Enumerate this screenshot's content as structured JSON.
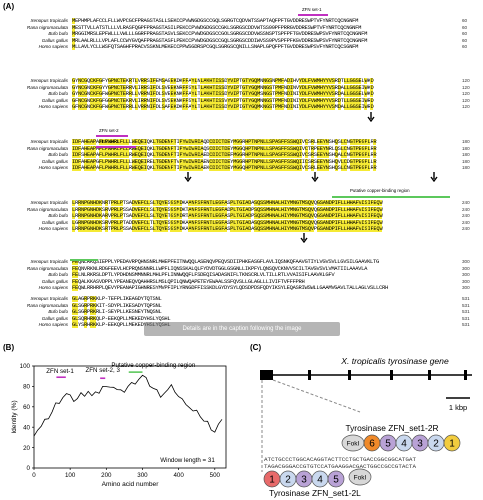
{
  "panel_a": {
    "label": "(A)",
    "species": [
      "Xenopus tropicalis",
      "Rana nigromaculata",
      "Bufo bufo",
      "Gallus gallus",
      "Homo sapiens"
    ],
    "blocks": [
      {
        "ends": [
          "60",
          "60",
          "60",
          "60",
          "60"
        ],
        "rows": [
          "MEPHMPLAFCCLFLLWVPCGCFPRAGSTASLLSEKCCPVWNGDGSCCGQLSGRGTCQDVWTSSAPTAQFPFTGVDDRESWPTVFYNRTCQCNGNFM",
          "MESTTVLLATSTLLLVLRASFQGPFPRAGSTASILPEKCCPVWDGDGSCCGKLSGRGSCDDVWTSS99PFPRRGVDDRESWPTVFYNRTCQCNGNFM",
          "MRGGIMRSLEPFWLLLVWLLLGGRFPRAGSTASVLSEKCCPVWDGDGSCCGOLSGRGSCDDVWSSNSPTSPFPFTGVDDRESWPSVFYNRTCQCNGNFM",
          "MRLAALRLLLVPLAFLCCWYGVQAFPRAGSTASFLPEKCCPVWDGDGSCCGQLSGRGSCDDIWVSS9PVSPFPFKGVDDRESWPSVFYNRTCQCNGNFM",
          "MLLAVLYCLLWSFQTSAGHFPRACVSSKNLMEKECCPPWSGDRSPCGQLSGRGSCQNILLSNAPLGPQFPFTGVDDRESWPSVFYNRTCQCSGNFM"
        ]
      },
      {
        "ends": [
          "120",
          "120",
          "120",
          "120",
          "120"
        ],
        "rows": [
          "GYNCGQCKFGFYGPNCTEKRTLVRRSIFEMSAGEKDKFFAYLNLAKHTISSDYVIPTGTYGQMNNGSNPMFADIHVYDLFVWMHYYVSRDTLLGGSELWKD",
          "GYNCGNCKFGYYGPNCTERRVLIRRSIFDLSVEEKNRFFSYLTLAKHTISSDYVIPTGTYGQMNNGSTPMFNDINVYDLFVWMHYYVSRDALLGGSEIWKD",
          "GYNCGNCKFGFWGPNCTERRLLVRRNIFDLSVEEKNKFFAYLTLAKHTISSDYVIPTGTYGQMSNGSTPMFNDINIYDLFVWMHYYVSRDALLGGSELWKD",
          "GFNCGNCKFGFGGPNCTEKRVLIRRNIFDLSVSEKNKFFSYLTLAKHTISSVYVIPTGTYGQMNNGSTPMFNDINIYDLFVWMHYYVSRDTLLGGSEIWRD",
          "GFNCGNCKFGFWGPNCTERRLLVRRNIFDLSAPEKDKFFAYLTLAKHTISSDYVIPIGTYGQMKNGSTPMFNDINIYDLFVWMHYYVSMDALLGGSEIWRD"
        ]
      },
      {
        "ends": [
          "180",
          "180",
          "180",
          "180",
          "180"
        ],
        "rows": [
          "IDFAHEAPAFLPWHRLFLLLWEQEIQKLTGDENFTIPYWDWRDAQDCDICTDEYMGGRHPTNPNLLSPASFFSSWQIVCSRLEEYNSHQSLCNGTPEGPLRR",
          "IDFAHEAPAFLPWHRLFLLRWEQEIQKLTGDENFTIPYWDWRDAQSCDICTDEYMGGQHPTNPNLLSPASFFSSWQIVCTRPEEYNRLQSLCNGTPEGPLRR",
          "IDFSHEAPAFLPWHRLFLLRWEQEIQKLTGDENFTIPYWDWRDAEDCDICTDEFMGGRHPTNPNLLSPASFFSSWQIVCSRSEEYNSHQALCNGTPEGPLRR",
          "IDFAHEAPGFLPWHRLFLLLWEQEIRELTGDENFTVPYWDWRDAENCDICTDEYMGGRHPTNPNLLSPASFFSSWQIICSRSEEYNSHQVLCDGTPEGPLLR",
          "IDFAHEAPAFLPWHRLFLLRWEQEIQKLTGDENFTIPYWDWRDAEKCDICTDEYMGGQHPTNPNLLSPASFFSSWQIVCSRLEEYNSHQSLCNGTPEGPLRR"
        ]
      },
      {
        "ends": [
          "240",
          "240",
          "240",
          "240",
          "240"
        ],
        "rows": [
          "LRRNPGNHDKNRTPRLPTSADVEFCLSLTQYESGSMDKAANFSFRNTLEGFASPLTGIADASQSSMHNALHIYMNGTMSQVQGSANDPIFLLHHAFVDSIFEQW",
          "LRRNPGNHDKSRVPRLPSSADVEFCLSLTQYESGSMDKTANFSFRNTLEGFADPLTGIADPSQSSMHNALHIYMNGTMSQVQGSANDPIFLLHHAFVDSIFEQW",
          "LRRNPGNHDKARVPRLPTSADVEFCLSLTQYETGSMDRTANFSFRNTLEGFASPLTGIADPSQSSMHNALHIYMNGTMSQVQGSANDPIFLLHHAFVDSIFEQW",
          "LGRNPGNHDKSRVPRLPTADDVEFCLTLTQYESGSMDKAANFSFRNTLEGFASPLTGIADASQSSMHNALHIYMNGTMSQVQGSANDPIFLLHHAFVDSIFEQW",
          "LRRNPGNHDKSRTPRLPSSADVEFCLSLTQYESGSMDKAANFSFRNTLEGFASPLTGIADASQSSMHNALHIYMNGTMSQVPGSANDPIFLLHHAFVDSIFEQW"
        ]
      },
      {
        "ends": [
          "300",
          "300",
          "300",
          "300",
          "300"
        ],
        "rows": [
          "FEQNLRKQSIEPPLYPEDAVRPQHNSNRLMHEPFEITNWQQLASENQVPEQVSDIIPHKEASGFLAVLIQSNKQFAAVGTIYLVGVSVLLGVSILGAAVKLTG",
          "FEQNVRKNLRDGFEEVLHCPRQNSNNRLLWPFLIQNSSKALQLFYDVDTGGLGSGNLLIKPFYLQNSQVCKNVVSCILTAVGVSVLVMATIILAAAVLA",
          "FELNLRKRSLDPTLYPDHDNSMMNNRLMHLPFLINNWQQFLFSDEQISADASNIFLTKNSCRLVLTILLRTLVVAISIFLAAVKLGFV",
          "FEQALKKASVDPPLYPEANEQVQAHHRSLMSLQPILQNWQAPETEYEWAALSSFQVSLLGLAGLLLIVIFTVFFFPRH",
          "FEQWLRRHRPLQEVYPEANAPIGHNRESYMVPFIPLYRNGDFFISSKDLGYDYSYLQDSDPDSFQDYIKSYLEQASRIWSWLLGAAMVGAVLTALLAGLVSLLCRH"
        ]
      },
      {
        "ends": [
          "531",
          "531",
          "531",
          "531",
          "531"
        ],
        "rows": [
          "GLAGRPRKKLP-TEFPLIKEAGDYTQTSNL",
          "GLSGRPRKKIT-SDYPLIKESADYTQPSNL",
          "GLSGRPRKRLI-SEYPLLKESNEYTNQSNL",
          "GLSQRHRKQLP-EEKQPLLMEKEDYHSLYQSHL",
          "GLYSRHRKKLP-EEKQPLLMEKEDYHSLYQSHL"
        ]
      }
    ],
    "annotations": {
      "zfn_set1": "ZFN set-1",
      "zfn_set2": "ZFN set-2",
      "zfn_set3": "ZFN set-3",
      "copper_region": "Putative copper-binding region"
    },
    "caption_chip": "Details are in the caption following the image"
  },
  "panel_b": {
    "label": "(B)",
    "chart_data": {
      "type": "line",
      "ylabel": "Identity (%)",
      "xlabel": "Amino acid number",
      "xlim": [
        0,
        531
      ],
      "ylim": [
        0,
        100
      ],
      "xticks": [
        0,
        100,
        200,
        300,
        400,
        500
      ],
      "yticks": [
        0,
        20,
        40,
        60,
        80,
        100
      ],
      "series": [
        {
          "x": [
            0,
            10,
            20,
            30,
            40,
            50,
            60,
            70,
            80,
            90,
            100,
            110,
            120,
            130,
            140,
            150,
            160,
            170,
            180,
            190,
            200,
            210,
            220,
            230,
            240,
            250,
            260,
            270,
            280,
            290,
            300,
            310,
            320,
            330,
            340,
            350,
            360,
            370,
            380,
            390,
            400,
            410,
            420,
            430,
            440,
            450,
            460,
            470,
            480,
            490,
            500,
            510,
            520
          ],
          "y": [
            34,
            38,
            40,
            45,
            50,
            55,
            62,
            66,
            70,
            72,
            69,
            67,
            68,
            72,
            73,
            76,
            70,
            72,
            75,
            80,
            78,
            82,
            80,
            76,
            74,
            76,
            80,
            82,
            85,
            88,
            90,
            86,
            82,
            78,
            75,
            72,
            74,
            76,
            79,
            76,
            70,
            66,
            65,
            60,
            55,
            54,
            52,
            46,
            44,
            40,
            36,
            42,
            45
          ]
        }
      ],
      "annotations": [
        "ZFN set-1",
        "ZFN set-2, 3",
        "Putative copper-binding region",
        "Window length = 31"
      ]
    }
  },
  "panel_c": {
    "label": "(C)",
    "gene_title": "X. tropicalis tyrosinase gene",
    "scale_label": "1 kbp",
    "zfn_r_label": "Tyrosinase ZFN_set1-2R",
    "zfn_l_label": "Tyrosinase ZFN_set1-2L",
    "fok_label": "FokI",
    "zf_r_numbers": [
      "6",
      "5",
      "4",
      "3",
      "2",
      "1"
    ],
    "zf_l_numbers": [
      "1",
      "2",
      "3",
      "4",
      "5"
    ],
    "dna_top": "ATCTGCCCTGGCACAGGTACTTCCTGCTGACCGGCGGCATGAT",
    "dna_bottom": "TAGACGGGACCGTGTCCATGAAGGACGACTGGCCGCCGTACTA"
  }
}
